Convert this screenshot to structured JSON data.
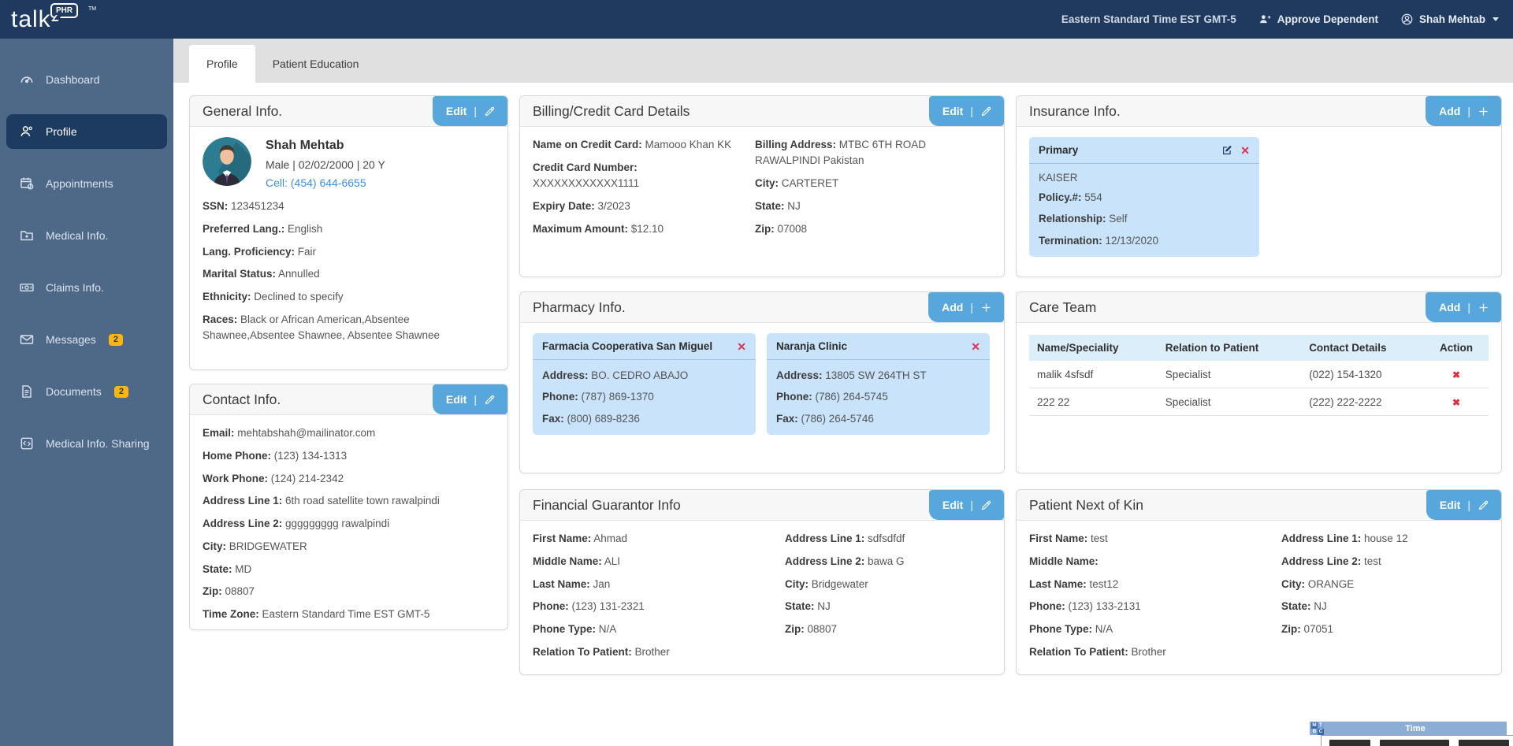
{
  "header": {
    "logo_text": "talk",
    "logo_badge": "PHR",
    "logo_tm": "TM",
    "timezone": "Eastern Standard Time EST GMT-5",
    "approve_dependent": "Approve Dependent",
    "user_name": "Shah Mehtab"
  },
  "sidebar": {
    "items": [
      {
        "label": "Dashboard"
      },
      {
        "label": "Profile"
      },
      {
        "label": "Appointments"
      },
      {
        "label": "Medical Info."
      },
      {
        "label": "Claims Info."
      },
      {
        "label": "Messages",
        "badge": "2"
      },
      {
        "label": "Documents",
        "badge": "2"
      },
      {
        "label": "Medical Info. Sharing"
      }
    ]
  },
  "tabs": [
    {
      "label": "Profile",
      "active": true
    },
    {
      "label": "Patient Education",
      "active": false
    }
  ],
  "ui": {
    "action_sep": "|"
  },
  "cards": {
    "general": {
      "title": "General Info.",
      "action": "Edit",
      "name": "Shah Mehtab",
      "demographics": "Male | 02/02/2000 | 20 Y",
      "cell": "Cell: (454) 644-6655",
      "fields": [
        {
          "label": "SSN:",
          "value": "123451234"
        },
        {
          "label": "Preferred Lang.:",
          "value": "English"
        },
        {
          "label": "Lang. Proficiency:",
          "value": "Fair"
        },
        {
          "label": "Marital Status:",
          "value": "Annulled"
        },
        {
          "label": "Ethnicity:",
          "value": "Declined to specify"
        },
        {
          "label": "Races:",
          "value": "Black or African American,Absentee Shawnee,Absentee Shawnee, Absentee Shawnee"
        }
      ]
    },
    "contact": {
      "title": "Contact Info.",
      "action": "Edit",
      "fields": [
        {
          "label": "Email:",
          "value": "mehtabshah@mailinator.com"
        },
        {
          "label": "Home Phone:",
          "value": "(123) 134-1313"
        },
        {
          "label": "Work Phone:",
          "value": "(124) 214-2342"
        },
        {
          "label": "Address Line 1:",
          "value": "6th road satellite town rawalpindi"
        },
        {
          "label": "Address Line 2:",
          "value": "ggggggggg rawalpindi"
        },
        {
          "label": "City:",
          "value": "BRIDGEWATER"
        },
        {
          "label": "State:",
          "value": "MD"
        },
        {
          "label": "Zip:",
          "value": "08807"
        },
        {
          "label": "Time Zone:",
          "value": "Eastern Standard Time EST GMT-5"
        }
      ]
    },
    "billing": {
      "title": "Billing/Credit Card Details",
      "action": "Edit",
      "left": [
        {
          "label": "Name on Credit Card:",
          "value": "Mamooo Khan KK"
        },
        {
          "label": "Credit Card Number:",
          "value": "XXXXXXXXXXXX1111"
        },
        {
          "label": "Expiry Date:",
          "value": "3/2023"
        },
        {
          "label": "Maximum Amount:",
          "value": "$12.10"
        }
      ],
      "right": [
        {
          "label": "Billing Address:",
          "value": "MTBC 6TH ROAD RAWALPINDI Pakistan"
        },
        {
          "label": "City:",
          "value": "CARTERET"
        },
        {
          "label": "State:",
          "value": "NJ"
        },
        {
          "label": "Zip:",
          "value": "07008"
        }
      ]
    },
    "pharmacy": {
      "title": "Pharmacy Info.",
      "action": "Add",
      "entries": [
        {
          "name": "Farmacia Cooperativa San Miguel",
          "fields": [
            {
              "label": "Address:",
              "value": "BO. CEDRO ABAJO"
            },
            {
              "label": "Phone:",
              "value": "(787) 869-1370"
            },
            {
              "label": "Fax:",
              "value": "(800) 689-8236"
            }
          ]
        },
        {
          "name": "Naranja Clinic",
          "fields": [
            {
              "label": "Address:",
              "value": "13805 SW 264TH ST"
            },
            {
              "label": "Phone:",
              "value": "(786) 264-5745"
            },
            {
              "label": "Fax:",
              "value": "(786) 264-5746"
            }
          ]
        }
      ]
    },
    "financial": {
      "title": "Financial Guarantor Info",
      "action": "Edit",
      "left": [
        {
          "label": "First Name:",
          "value": "Ahmad"
        },
        {
          "label": "Middle Name:",
          "value": "ALI"
        },
        {
          "label": "Last Name:",
          "value": "Jan"
        },
        {
          "label": "Phone:",
          "value": "(123) 131-2321"
        },
        {
          "label": "Phone Type:",
          "value": "N/A"
        },
        {
          "label": "Relation To Patient:",
          "value": "Brother"
        }
      ],
      "right": [
        {
          "label": "Address Line 1:",
          "value": "sdfsdfdf"
        },
        {
          "label": "Address Line 2:",
          "value": "bawa G"
        },
        {
          "label": "City:",
          "value": "Bridgewater"
        },
        {
          "label": "State:",
          "value": "NJ"
        },
        {
          "label": "Zip:",
          "value": "08807"
        }
      ]
    },
    "insurance": {
      "title": "Insurance Info.",
      "action": "Add",
      "entry": {
        "name": "Primary",
        "plan": "KAISER",
        "fields": [
          {
            "label": "Policy.#:",
            "value": "554"
          },
          {
            "label": "Relationship:",
            "value": "Self"
          },
          {
            "label": "Termination:",
            "value": "12/13/2020"
          }
        ]
      }
    },
    "care_team": {
      "title": "Care Team",
      "action": "Add",
      "columns": [
        "Name/Speciality",
        "Relation to Patient",
        "Contact Details",
        "Action"
      ],
      "rows": [
        [
          "malik 4sfsdf",
          "Specialist",
          "(022) 154-1320"
        ],
        [
          "222 22",
          "Specialist",
          "(222) 222-2222"
        ]
      ]
    },
    "next_of_kin": {
      "title": "Patient Next of Kin",
      "action": "Edit",
      "left": [
        {
          "label": "First Name:",
          "value": "test"
        },
        {
          "label": "Middle Name:",
          "value": ""
        },
        {
          "label": "Last Name:",
          "value": "test12"
        },
        {
          "label": "Phone:",
          "value": "(123) 133-2131"
        },
        {
          "label": "Phone Type:",
          "value": "N/A"
        },
        {
          "label": "Relation To Patient:",
          "value": "Brother"
        }
      ],
      "right": [
        {
          "label": "Address Line 1:",
          "value": "house 12"
        },
        {
          "label": "Address Line 2:",
          "value": "test"
        },
        {
          "label": "City:",
          "value": "ORANGE"
        },
        {
          "label": "State:",
          "value": "NJ"
        },
        {
          "label": "Zip:",
          "value": "07051"
        }
      ]
    }
  },
  "time_widget": {
    "title": "Time",
    "logo_letters": [
      "M",
      "T",
      "B",
      "C"
    ]
  },
  "colors": {
    "header_navy": "#1f3a5e",
    "sidebar_blue": "#4e6888",
    "active_item_navy": "#1d3a60",
    "accent_blue": "#58a7dc",
    "subcard_blue": "#c9e3fa",
    "table_header_blue": "#ddeefb",
    "badge_yellow": "#fdb515",
    "delete_red": "#e0314e",
    "link_blue": "#3e8ede"
  }
}
